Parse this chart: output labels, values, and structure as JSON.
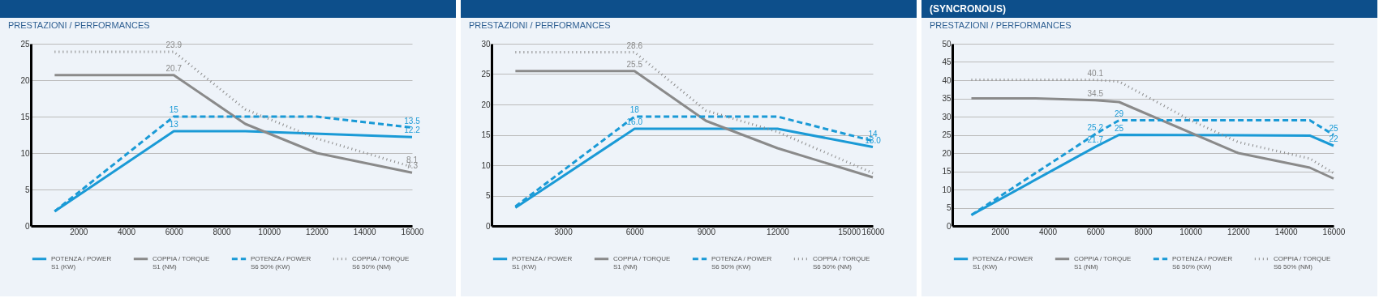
{
  "chart_data": [
    {
      "type": "line",
      "subtitle": "PRESTAZIONI / PERFORMANCES",
      "xlim": [
        0,
        16000
      ],
      "xticks": [
        2000,
        4000,
        6000,
        8000,
        10000,
        12000,
        14000,
        16000
      ],
      "ylim": [
        0,
        25
      ],
      "yticks": [
        0,
        5,
        10,
        15,
        20,
        25
      ],
      "grid": "y",
      "legend": "bottom",
      "series": [
        {
          "name": "POTENZA / POWER S1 (KW)",
          "color": "#1a9ad6",
          "line_style": "solid",
          "x": [
            1000,
            6000,
            9000,
            16000
          ],
          "values": [
            2,
            13,
            13,
            12.2
          ],
          "value_labels": [
            null,
            "13",
            null,
            "12.2"
          ]
        },
        {
          "name": "COPPIA / TORQUE S1 (NM)",
          "color": "#8a8a8a",
          "line_style": "solid",
          "x": [
            1000,
            6000,
            9000,
            12000,
            16000
          ],
          "values": [
            20.7,
            20.7,
            14,
            10,
            7.3
          ],
          "value_labels": [
            null,
            "20.7",
            null,
            null,
            "7.3"
          ]
        },
        {
          "name": "POTENZA / POWER S6 50% (KW)",
          "color": "#1a9ad6",
          "line_style": "dashed",
          "x": [
            1000,
            6000,
            12000,
            16000
          ],
          "values": [
            2,
            15,
            15,
            13.5
          ],
          "value_labels": [
            null,
            "15",
            null,
            "13.5"
          ]
        },
        {
          "name": "COPPIA / TORQUE S6 50% (NM)",
          "color": "#8a8a8a",
          "line_style": "dotted",
          "x": [
            1000,
            6000,
            9000,
            12000,
            16000
          ],
          "values": [
            23.9,
            23.9,
            16,
            12,
            8.1
          ],
          "value_labels": [
            null,
            "23.9",
            null,
            null,
            "8.1"
          ]
        }
      ]
    },
    {
      "type": "line",
      "subtitle": "PRESTAZIONI / PERFORMANCES",
      "xlim": [
        0,
        16000
      ],
      "xticks": [
        3000,
        6000,
        9000,
        12000,
        15000,
        16000
      ],
      "ylim": [
        0,
        30
      ],
      "yticks": [
        0,
        5,
        10,
        15,
        20,
        25,
        30
      ],
      "grid": "y",
      "legend": "bottom",
      "series": [
        {
          "name": "POTENZA / POWER S1 (KW)",
          "color": "#1a9ad6",
          "line_style": "solid",
          "x": [
            1000,
            6000,
            12000,
            16000
          ],
          "values": [
            3,
            16.0,
            16,
            13.0
          ],
          "value_labels": [
            null,
            "16.0",
            null,
            "13.0"
          ]
        },
        {
          "name": "COPPIA / TORQUE S1 (NM)",
          "color": "#8a8a8a",
          "line_style": "solid",
          "x": [
            1000,
            6000,
            9000,
            12000,
            16000
          ],
          "values": [
            25.5,
            25.5,
            17.3,
            12.8,
            8
          ],
          "value_labels": [
            null,
            "25.5",
            null,
            null,
            null
          ]
        },
        {
          "name": "POTENZA / POWER S6 50% (KW)",
          "color": "#1a9ad6",
          "line_style": "dashed",
          "x": [
            1000,
            6000,
            12000,
            16000
          ],
          "values": [
            3.2,
            18,
            18,
            14
          ],
          "value_labels": [
            null,
            "18",
            null,
            "14"
          ]
        },
        {
          "name": "COPPIA / TORQUE S6 50% (NM)",
          "color": "#8a8a8a",
          "line_style": "dotted",
          "x": [
            1000,
            6000,
            9000,
            12000,
            16000
          ],
          "values": [
            28.6,
            28.6,
            19,
            15.5,
            8.7
          ],
          "value_labels": [
            null,
            "28.6",
            null,
            null,
            null
          ]
        }
      ]
    },
    {
      "type": "line",
      "title": "(SYNCRONOUS)",
      "subtitle": "PRESTAZIONI / PERFORMANCES",
      "xlim": [
        0,
        16000
      ],
      "xticks": [
        2000,
        4000,
        6000,
        8000,
        10000,
        12000,
        14000,
        16000
      ],
      "ylim": [
        0,
        50
      ],
      "yticks": [
        0,
        5,
        10,
        15,
        20,
        25,
        30,
        35,
        40,
        45,
        50
      ],
      "grid": "y",
      "legend": "bottom",
      "series": [
        {
          "name": "POTENZA / POWER S1 (KW)",
          "color": "#1a9ad6",
          "line_style": "solid",
          "x": [
            800,
            6000,
            7000,
            15000,
            16000
          ],
          "values": [
            3,
            21.7,
            25,
            24.8,
            22
          ],
          "value_labels": [
            null,
            "21.7",
            "25",
            null,
            "22"
          ]
        },
        {
          "name": "COPPIA / TORQUE S1 (NM)",
          "color": "#8a8a8a",
          "line_style": "solid",
          "x": [
            800,
            3500,
            6000,
            7000,
            12000,
            15000,
            16000
          ],
          "values": [
            35,
            35,
            34.5,
            34,
            20,
            16,
            13
          ],
          "value_labels": [
            null,
            null,
            "34.5",
            null,
            null,
            null,
            null
          ]
        },
        {
          "name": "POTENZA / POWER S6 50% (KW)",
          "color": "#1a9ad6",
          "line_style": "dashed",
          "x": [
            800,
            6000,
            7000,
            15000,
            16000
          ],
          "values": [
            3,
            25.2,
            29,
            29,
            25
          ],
          "value_labels": [
            null,
            "25.2",
            "29",
            null,
            "25"
          ]
        },
        {
          "name": "COPPIA / TORQUE S6 50% (NM)",
          "color": "#8a8a8a",
          "line_style": "dotted",
          "x": [
            800,
            6000,
            7000,
            10000,
            12000,
            15000,
            16000
          ],
          "values": [
            40.1,
            40.1,
            39.6,
            29,
            23,
            18.5,
            14.5
          ],
          "value_labels": [
            null,
            "40.1",
            null,
            null,
            null,
            null,
            null
          ]
        }
      ]
    }
  ]
}
